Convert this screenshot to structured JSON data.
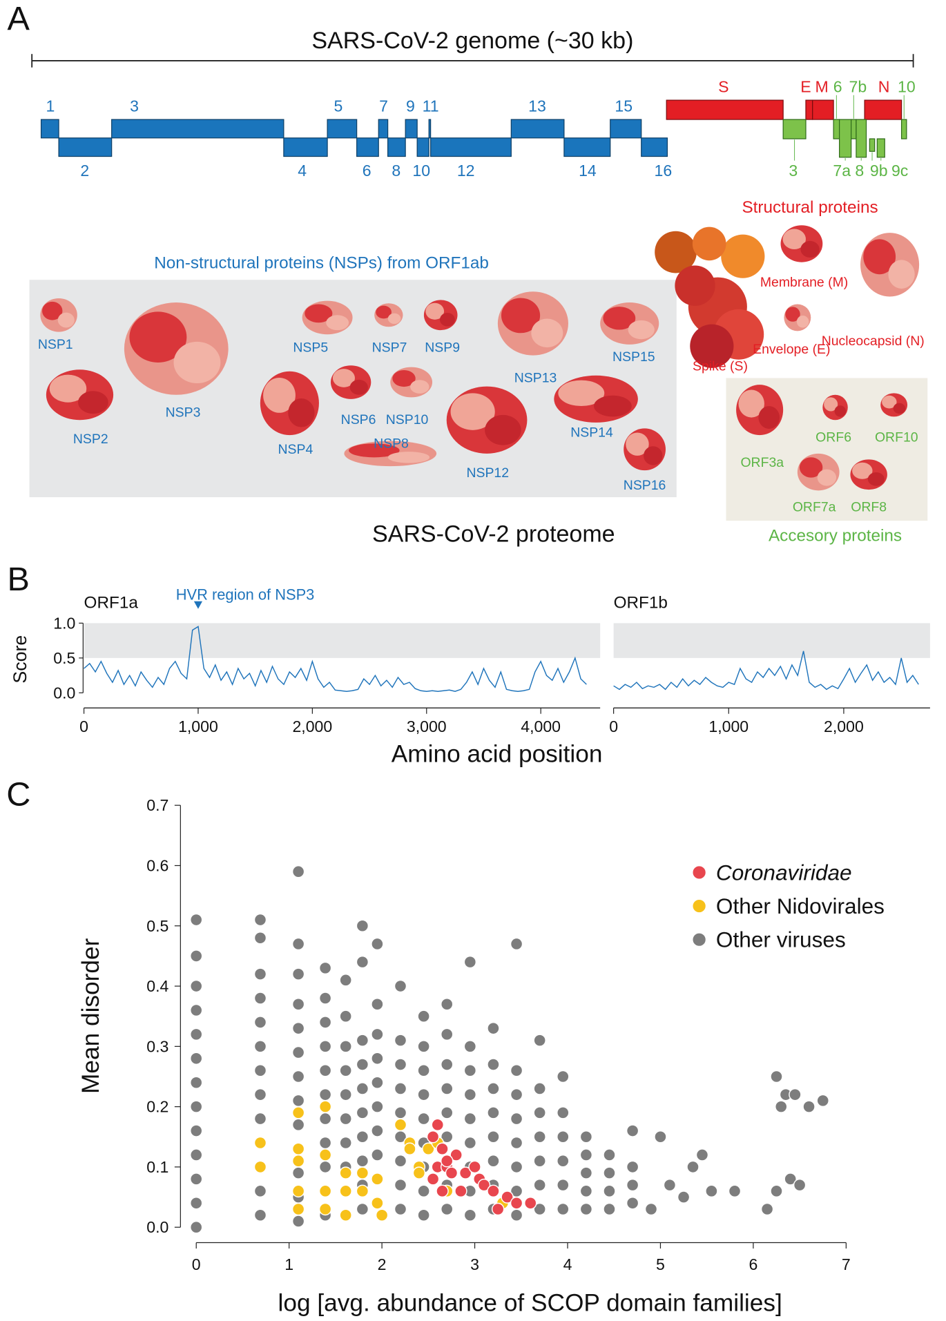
{
  "panel_labels": [
    "A",
    "B",
    "C"
  ],
  "panel_a": {
    "genome_title": "SARS-CoV-2 genome (~30 kb)",
    "nsp_genes": [
      "1",
      "2",
      "3",
      "4",
      "5",
      "6",
      "7",
      "8",
      "9",
      "10",
      "11",
      "12",
      "13",
      "14",
      "15",
      "16"
    ],
    "structural_genes": [
      "S",
      "E",
      "M",
      "N"
    ],
    "accessory_genes": [
      "3",
      "6",
      "7a",
      "7b",
      "8",
      "9b",
      "9c",
      "10"
    ],
    "nsp_title": "Non-structural proteins (NSPs) from ORF1ab",
    "nsp_proteins": [
      "NSP1",
      "NSP2",
      "NSP3",
      "NSP4",
      "NSP5",
      "NSP6",
      "NSP7",
      "NSP8",
      "NSP9",
      "NSP10",
      "NSP12",
      "NSP13",
      "NSP14",
      "NSP15",
      "NSP16"
    ],
    "structural_title": "Structural proteins",
    "structural_proteins": [
      "Membrane (M)",
      "Nucleocapsid (N)",
      "Envelope (E)",
      "Spike (S)"
    ],
    "accessory_title": "Accesory proteins",
    "accessory_proteins": [
      "ORF3a",
      "ORF6",
      "ORF10",
      "ORF7a",
      "ORF8"
    ],
    "proteome_title": "SARS-CoV-2 proteome"
  },
  "panel_b": {
    "x_label": "Amino acid position"
  },
  "chart_data": [
    {
      "type": "line",
      "title": "ORF1a",
      "annotation": "HVR region of NSP3",
      "annotation_x": 1000,
      "y_label": "Score",
      "color": "#1f74bb",
      "x": [
        0,
        50,
        100,
        150,
        200,
        250,
        300,
        350,
        400,
        450,
        500,
        550,
        600,
        650,
        700,
        750,
        800,
        850,
        900,
        950,
        1000,
        1050,
        1100,
        1150,
        1200,
        1250,
        1300,
        1350,
        1400,
        1450,
        1500,
        1550,
        1600,
        1650,
        1700,
        1750,
        1800,
        1850,
        1900,
        1950,
        2000,
        2050,
        2100,
        2150,
        2200,
        2250,
        2300,
        2350,
        2400,
        2450,
        2500,
        2550,
        2600,
        2650,
        2700,
        2750,
        2800,
        2850,
        2900,
        2950,
        3000,
        3050,
        3100,
        3150,
        3200,
        3250,
        3300,
        3350,
        3400,
        3450,
        3500,
        3550,
        3600,
        3650,
        3700,
        3750,
        3800,
        3850,
        3900,
        3950,
        4000,
        4050,
        4100,
        4150,
        4200,
        4250,
        4300,
        4350,
        4400
      ],
      "values": [
        0.35,
        0.42,
        0.3,
        0.45,
        0.28,
        0.15,
        0.32,
        0.12,
        0.25,
        0.1,
        0.3,
        0.18,
        0.08,
        0.22,
        0.12,
        0.35,
        0.45,
        0.28,
        0.2,
        0.9,
        0.95,
        0.35,
        0.22,
        0.4,
        0.18,
        0.3,
        0.12,
        0.35,
        0.2,
        0.28,
        0.1,
        0.32,
        0.15,
        0.38,
        0.2,
        0.12,
        0.3,
        0.22,
        0.35,
        0.18,
        0.45,
        0.2,
        0.08,
        0.15,
        0.04,
        0.03,
        0.02,
        0.03,
        0.05,
        0.2,
        0.12,
        0.25,
        0.1,
        0.18,
        0.08,
        0.22,
        0.12,
        0.15,
        0.06,
        0.03,
        0.02,
        0.03,
        0.02,
        0.03,
        0.04,
        0.02,
        0.05,
        0.15,
        0.3,
        0.12,
        0.35,
        0.18,
        0.08,
        0.3,
        0.05,
        0.03,
        0.02,
        0.03,
        0.05,
        0.3,
        0.45,
        0.25,
        0.18,
        0.35,
        0.15,
        0.3,
        0.5,
        0.2,
        0.12
      ],
      "xlim": [
        0,
        4520
      ],
      "ylim": [
        0,
        1
      ],
      "xticks": [
        0,
        {
          "value": 1000,
          "label": "1,000"
        },
        {
          "value": 2000,
          "label": "2,000"
        },
        {
          "value": 3000,
          "label": "3,000"
        },
        {
          "value": 4000,
          "label": "4,000"
        }
      ],
      "yticks": [
        {
          "value": 0,
          "label": "0.0"
        },
        0.5,
        {
          "value": 1,
          "label": "1.0"
        }
      ],
      "highlight_range": [
        0.5,
        1
      ]
    },
    {
      "type": "line",
      "title": "ORF1b",
      "color": "#1f74bb",
      "x": [
        0,
        50,
        100,
        150,
        200,
        250,
        300,
        350,
        400,
        450,
        500,
        550,
        600,
        650,
        700,
        750,
        800,
        850,
        900,
        950,
        1000,
        1050,
        1100,
        1150,
        1200,
        1250,
        1300,
        1350,
        1400,
        1450,
        1500,
        1550,
        1600,
        1650,
        1700,
        1750,
        1800,
        1850,
        1900,
        1950,
        2000,
        2050,
        2100,
        2150,
        2200,
        2250,
        2300,
        2350,
        2400,
        2450,
        2500,
        2550,
        2600,
        2650
      ],
      "values": [
        0.1,
        0.05,
        0.12,
        0.08,
        0.15,
        0.06,
        0.1,
        0.08,
        0.12,
        0.05,
        0.15,
        0.08,
        0.2,
        0.1,
        0.18,
        0.12,
        0.22,
        0.15,
        0.1,
        0.08,
        0.15,
        0.12,
        0.35,
        0.2,
        0.15,
        0.3,
        0.22,
        0.35,
        0.25,
        0.38,
        0.2,
        0.4,
        0.25,
        0.6,
        0.15,
        0.08,
        0.12,
        0.05,
        0.1,
        0.06,
        0.2,
        0.35,
        0.15,
        0.28,
        0.4,
        0.18,
        0.3,
        0.15,
        0.22,
        0.12,
        0.5,
        0.15,
        0.25,
        0.12
      ],
      "xlim": [
        0,
        2750
      ],
      "ylim": [
        0,
        1
      ],
      "xticks": [
        0,
        {
          "value": 1000,
          "label": "1,000"
        },
        {
          "value": 2000,
          "label": "2,000"
        }
      ],
      "highlight_range": [
        0.5,
        1
      ]
    },
    {
      "type": "scatter",
      "x_label": "log [avg. abundance of SCOP domain families]",
      "y_label": "Mean disorder",
      "xlim": [
        -0.17,
        7
      ],
      "ylim": [
        -0.02,
        0.7
      ],
      "xticks": [
        0,
        1,
        2,
        3,
        4,
        5,
        6,
        7
      ],
      "yticks": [
        {
          "value": 0,
          "label": "0.0"
        },
        0.1,
        0.2,
        0.3,
        0.4,
        0.5,
        0.6,
        0.7
      ],
      "legend": "top-right",
      "series": [
        {
          "name": "Coronaviridae",
          "color": "#e8464e",
          "x": [
            2.55,
            2.6,
            2.65,
            2.6,
            2.7,
            2.55,
            2.75,
            2.8,
            2.65,
            2.9,
            3.0,
            3.05,
            3.1,
            3.2,
            3.35,
            3.45,
            3.6,
            2.85,
            2.7,
            3.25
          ],
          "values": [
            0.15,
            0.17,
            0.13,
            0.1,
            0.1,
            0.08,
            0.09,
            0.12,
            0.06,
            0.09,
            0.1,
            0.08,
            0.07,
            0.06,
            0.05,
            0.04,
            0.04,
            0.06,
            0.11,
            0.03
          ]
        },
        {
          "name": "Other Nidovirales",
          "color": "#f7c11a",
          "x": [
            0.69,
            0.69,
            1.1,
            1.1,
            1.1,
            1.1,
            1.1,
            1.39,
            1.39,
            1.39,
            1.39,
            1.61,
            1.61,
            1.61,
            1.79,
            1.79,
            1.95,
            1.95,
            2.0,
            2.2,
            2.3,
            2.3,
            2.4,
            2.4,
            2.5,
            2.6,
            2.7,
            3.3
          ],
          "values": [
            0.14,
            0.1,
            0.19,
            0.13,
            0.11,
            0.06,
            0.03,
            0.2,
            0.12,
            0.06,
            0.03,
            0.09,
            0.06,
            0.02,
            0.09,
            0.06,
            0.08,
            0.04,
            0.02,
            0.17,
            0.14,
            0.13,
            0.1,
            0.09,
            0.13,
            0.14,
            0.06,
            0.04
          ]
        },
        {
          "name": "Other viruses",
          "color": "#7d7d7d",
          "x": [
            0,
            0,
            0,
            0,
            0,
            0,
            0,
            0,
            0,
            0,
            0,
            0,
            0,
            0.69,
            0.69,
            0.69,
            0.69,
            0.69,
            0.69,
            0.69,
            0.69,
            0.69,
            0.69,
            0.69,
            0.69,
            0.69,
            1.1,
            1.1,
            1.1,
            1.1,
            1.1,
            1.1,
            1.1,
            1.1,
            1.1,
            1.1,
            1.1,
            1.1,
            1.1,
            1.39,
            1.39,
            1.39,
            1.39,
            1.39,
            1.39,
            1.39,
            1.39,
            1.39,
            1.39,
            1.39,
            1.61,
            1.61,
            1.61,
            1.61,
            1.61,
            1.61,
            1.61,
            1.61,
            1.61,
            1.61,
            1.79,
            1.79,
            1.79,
            1.79,
            1.79,
            1.79,
            1.79,
            1.79,
            1.79,
            1.79,
            1.95,
            1.95,
            1.95,
            1.95,
            1.95,
            1.95,
            1.95,
            1.95,
            1.95,
            1.95,
            2.2,
            2.2,
            2.2,
            2.2,
            2.2,
            2.2,
            2.2,
            2.2,
            2.2,
            2.45,
            2.45,
            2.45,
            2.45,
            2.45,
            2.45,
            2.45,
            2.45,
            2.45,
            2.7,
            2.7,
            2.7,
            2.7,
            2.7,
            2.7,
            2.7,
            2.7,
            2.7,
            2.95,
            2.95,
            2.95,
            2.95,
            2.95,
            2.95,
            2.95,
            2.95,
            2.95,
            3.2,
            3.2,
            3.2,
            3.2,
            3.2,
            3.2,
            3.2,
            3.2,
            3.45,
            3.45,
            3.45,
            3.45,
            3.45,
            3.45,
            3.45,
            3.45,
            3.7,
            3.7,
            3.7,
            3.7,
            3.7,
            3.7,
            3.7,
            3.95,
            3.95,
            3.95,
            3.95,
            3.95,
            3.95,
            4.2,
            4.2,
            4.2,
            4.2,
            4.2,
            4.45,
            4.45,
            4.45,
            4.45,
            4.7,
            4.7,
            4.7,
            4.7,
            4.9,
            5.1,
            5.25,
            5.35,
            5.45,
            5.55,
            5.8,
            6.15,
            6.25,
            6.3,
            6.4,
            6.5,
            6.25,
            6.35,
            6.45,
            6.6,
            6.75,
            5.0
          ],
          "values": [
            0,
            0.04,
            0.08,
            0.12,
            0.16,
            0.2,
            0.24,
            0.28,
            0.32,
            0.36,
            0.4,
            0.45,
            0.51,
            0.02,
            0.06,
            0.1,
            0.14,
            0.18,
            0.22,
            0.26,
            0.3,
            0.34,
            0.38,
            0.42,
            0.48,
            0.51,
            0.01,
            0.05,
            0.09,
            0.13,
            0.17,
            0.21,
            0.25,
            0.29,
            0.33,
            0.37,
            0.42,
            0.47,
            0.59,
            0.02,
            0.06,
            0.1,
            0.14,
            0.18,
            0.22,
            0.26,
            0.3,
            0.34,
            0.38,
            0.43,
            0.02,
            0.06,
            0.1,
            0.14,
            0.18,
            0.22,
            0.26,
            0.3,
            0.35,
            0.41,
            0.03,
            0.07,
            0.11,
            0.15,
            0.19,
            0.23,
            0.27,
            0.31,
            0.44,
            0.5,
            0.04,
            0.08,
            0.12,
            0.16,
            0.2,
            0.24,
            0.28,
            0.32,
            0.37,
            0.47,
            0.03,
            0.07,
            0.11,
            0.15,
            0.19,
            0.23,
            0.27,
            0.31,
            0.4,
            0.02,
            0.06,
            0.1,
            0.14,
            0.18,
            0.22,
            0.26,
            0.3,
            0.35,
            0.03,
            0.07,
            0.11,
            0.15,
            0.19,
            0.23,
            0.27,
            0.32,
            0.37,
            0.02,
            0.06,
            0.1,
            0.14,
            0.18,
            0.22,
            0.26,
            0.3,
            0.44,
            0.03,
            0.07,
            0.11,
            0.15,
            0.19,
            0.23,
            0.27,
            0.33,
            0.02,
            0.06,
            0.1,
            0.14,
            0.18,
            0.22,
            0.26,
            0.47,
            0.03,
            0.07,
            0.11,
            0.15,
            0.19,
            0.23,
            0.31,
            0.03,
            0.07,
            0.11,
            0.15,
            0.19,
            0.25,
            0.03,
            0.06,
            0.09,
            0.12,
            0.15,
            0.03,
            0.06,
            0.09,
            0.12,
            0.04,
            0.07,
            0.1,
            0.16,
            0.03,
            0.07,
            0.05,
            0.1,
            0.12,
            0.06,
            0.06,
            0.03,
            0.06,
            0.2,
            0.08,
            0.07,
            0.25,
            0.22,
            0.22,
            0.2,
            0.21,
            0.15
          ]
        }
      ]
    }
  ]
}
